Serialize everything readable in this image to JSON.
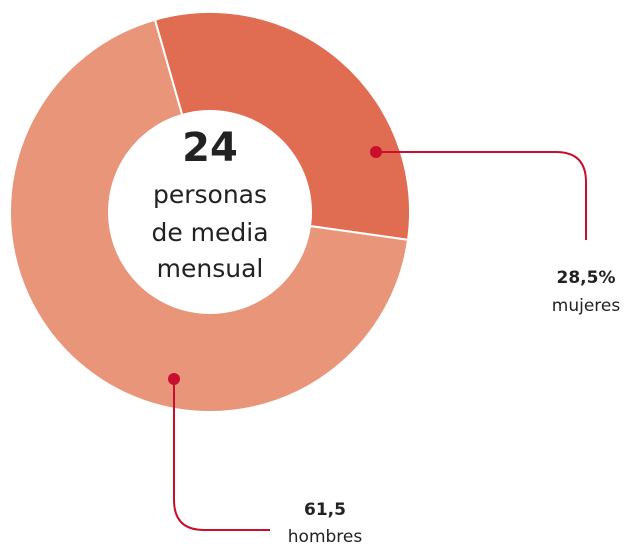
{
  "chart_data": {
    "type": "pie",
    "categories": [
      "mujeres",
      "hombres"
    ],
    "values": [
      28.5,
      61.5
    ],
    "value_labels": [
      "28,5%",
      "61,5"
    ],
    "colors": [
      "#e06c52",
      "#e8957a"
    ],
    "center_value": "24",
    "center_lines": [
      "personas",
      "de media",
      "mensual"
    ]
  }
}
